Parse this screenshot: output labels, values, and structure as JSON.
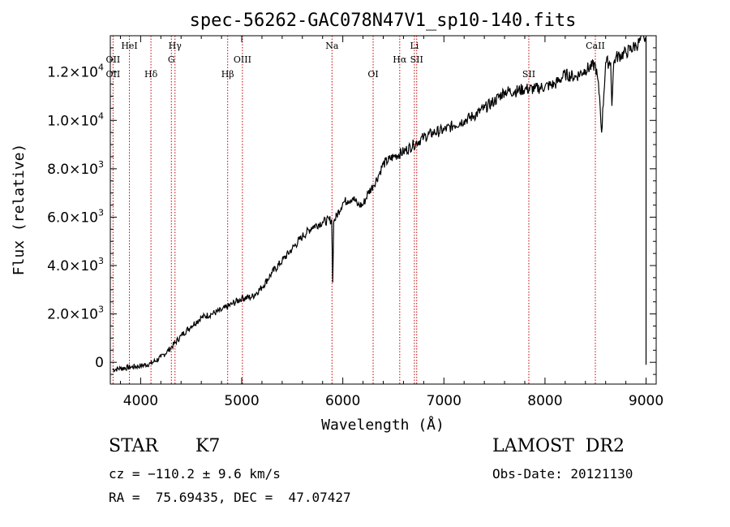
{
  "chart_data": {
    "type": "line",
    "title": "spec-56262-GAC078N47V1_sp10-140.fits",
    "xlabel": "Wavelength (Å)",
    "ylabel": "Flux (relative)",
    "xlim": [
      3700,
      9100
    ],
    "ylim": [
      -900,
      13500
    ],
    "grid": false,
    "x_ticks": [
      4000,
      5000,
      6000,
      7000,
      8000,
      9000
    ],
    "y_ticks": [
      {
        "value": 0,
        "mantissa": "0",
        "exp": ""
      },
      {
        "value": 2000,
        "mantissa": "2.0×10",
        "exp": "3"
      },
      {
        "value": 4000,
        "mantissa": "4.0×10",
        "exp": "3"
      },
      {
        "value": 6000,
        "mantissa": "6.0×10",
        "exp": "3"
      },
      {
        "value": 8000,
        "mantissa": "8.0×10",
        "exp": "3"
      },
      {
        "value": 10000,
        "mantissa": "1.0×10",
        "exp": "4"
      },
      {
        "value": 12000,
        "mantissa": "1.2×10",
        "exp": "4"
      }
    ],
    "spectral_lines": [
      {
        "label": "OII",
        "wavelength": 3727,
        "row": 2
      },
      {
        "label": "OII",
        "wavelength": 3727,
        "row": 3
      },
      {
        "label": "HeI",
        "wavelength": 3889,
        "row": 1
      },
      {
        "label": "Hδ",
        "wavelength": 4102,
        "row": 3
      },
      {
        "label": "Hγ",
        "wavelength": 4340,
        "row": 1
      },
      {
        "label": "G",
        "wavelength": 4304,
        "row": 2
      },
      {
        "label": "Hβ",
        "wavelength": 4861,
        "row": 3
      },
      {
        "label": "OIII",
        "wavelength": 5007,
        "row": 2
      },
      {
        "label": "Na",
        "wavelength": 5893,
        "row": 1
      },
      {
        "label": "OI",
        "wavelength": 6300,
        "row": 3
      },
      {
        "label": "Hα",
        "wavelength": 6563,
        "row": 2
      },
      {
        "label": "Li",
        "wavelength": 6708,
        "row": 1
      },
      {
        "label": "SII",
        "wavelength": 6731,
        "row": 2
      },
      {
        "label": "SII",
        "wavelength": 7840,
        "row": 3
      },
      {
        "label": "CaII",
        "wavelength": 8498,
        "row": 1
      }
    ],
    "series": [
      {
        "color": "#000000",
        "x": [
          3720,
          3800,
          3900,
          4000,
          4100,
          4200,
          4300,
          4400,
          4500,
          4600,
          4700,
          4800,
          4900,
          5000,
          5100,
          5200,
          5300,
          5400,
          5500,
          5600,
          5700,
          5800,
          5890,
          5900,
          5910,
          6000,
          6050,
          6100,
          6150,
          6200,
          6250,
          6300,
          6350,
          6400,
          6500,
          6600,
          6700,
          6800,
          6900,
          7000,
          7100,
          7200,
          7300,
          7400,
          7500,
          7600,
          7700,
          7800,
          7900,
          8000,
          8100,
          8200,
          8300,
          8400,
          8500,
          8540,
          8560,
          8600,
          8650,
          8662,
          8680,
          8700,
          8800,
          8900,
          8980,
          9000
        ],
        "y": [
          -300,
          -250,
          -200,
          -150,
          -50,
          200,
          600,
          1100,
          1500,
          1850,
          2000,
          2150,
          2400,
          2650,
          2700,
          3100,
          3700,
          4200,
          4700,
          5200,
          5600,
          5800,
          5900,
          3300,
          5800,
          6600,
          6700,
          6800,
          6500,
          6500,
          7000,
          7300,
          7700,
          8200,
          8500,
          8700,
          9000,
          9300,
          9500,
          9600,
          9800,
          10000,
          10200,
          10500,
          10800,
          11200,
          11200,
          11300,
          11300,
          11400,
          11500,
          11900,
          11800,
          12100,
          12300,
          11000,
          9500,
          12400,
          12400,
          10600,
          12400,
          12600,
          12800,
          13100,
          13400,
          13400
        ]
      }
    ]
  },
  "info": {
    "obj_class": "STAR",
    "subclass": "K7",
    "survey": "LAMOST  DR2",
    "cz": "cz = −110.2 ± 9.6 km/s",
    "obs_date": "Obs-Date: 20121130",
    "radec": "RA =  75.69435, DEC =  47.07427"
  }
}
